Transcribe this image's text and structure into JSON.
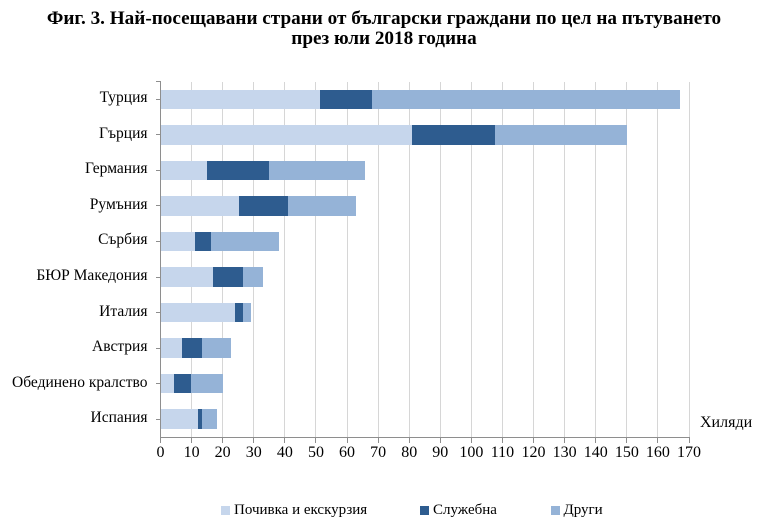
{
  "title": {
    "line1": "Фиг. 3. Най-посещавани страни от български граждани по цел на пътуването",
    "line2": "през юли 2018 година"
  },
  "chart_data": {
    "type": "bar",
    "orientation": "horizontal",
    "stacked": true,
    "title": "Фиг. 3. Най-посещавани страни от български граждани по цел на пътуването през юли 2018 година",
    "categories": [
      "Турция",
      "Гърция",
      "Германия",
      "Румъния",
      "Сърбия",
      "БЮР Македония",
      "Италия",
      "Австрия",
      "Обединено кралство",
      "Испания"
    ],
    "series": [
      {
        "name": "Почивка и екскурзия",
        "color": "#c6d6ec",
        "values": [
          51.4,
          80.8,
          15.0,
          25.3,
          11.2,
          16.9,
          24.0,
          6.9,
          4.5,
          12.0
        ]
      },
      {
        "name": "Служебна",
        "color": "#2e5c8f",
        "values": [
          16.6,
          26.9,
          19.8,
          15.6,
          5.1,
          9.7,
          2.4,
          6.5,
          5.4,
          1.5
        ]
      },
      {
        "name": "Други",
        "color": "#95b3d7",
        "values": [
          99.0,
          42.2,
          31.1,
          22.0,
          21.8,
          6.5,
          2.7,
          9.4,
          10.2,
          4.7
        ]
      }
    ],
    "totals": [
      167.0,
      149.9,
      65.9,
      62.9,
      38.1,
      33.1,
      29.1,
      22.8,
      20.1,
      18.2
    ],
    "xlabel": "Хиляди",
    "xlim": [
      0,
      170
    ],
    "xticks": [
      0,
      10,
      20,
      30,
      40,
      50,
      60,
      70,
      80,
      90,
      100,
      110,
      120,
      130,
      140,
      150,
      160,
      170
    ],
    "grid": "vertical",
    "legend_position": "bottom",
    "colors": {
      "grid": "#d6d6d6",
      "axis": "#8e8e8e",
      "text": "#000000"
    }
  }
}
